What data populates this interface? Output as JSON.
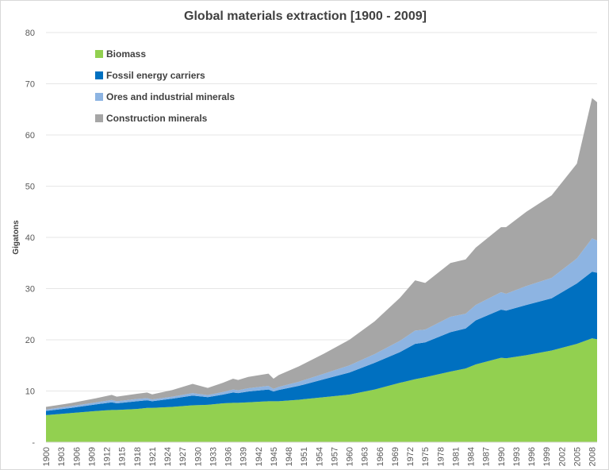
{
  "chart_data": {
    "type": "area",
    "stacked": true,
    "title": "Global materials extraction [1900 - 2009]",
    "xlabel": "",
    "ylabel": "Gigatons",
    "ylim": [
      0,
      80
    ],
    "yticks": [
      0,
      10,
      20,
      30,
      40,
      50,
      60,
      70,
      80
    ],
    "ytick_labels": [
      "-",
      "10",
      "20",
      "30",
      "40",
      "50",
      "60",
      "70",
      "80"
    ],
    "xlim": [
      1900,
      2009
    ],
    "xticks": [
      1900,
      1903,
      1906,
      1909,
      1912,
      1915,
      1918,
      1921,
      1924,
      1927,
      1930,
      1933,
      1936,
      1939,
      1942,
      1945,
      1948,
      1951,
      1954,
      1957,
      1960,
      1963,
      1966,
      1969,
      1972,
      1975,
      1978,
      1981,
      1984,
      1987,
      1990,
      1993,
      1996,
      1999,
      2002,
      2005,
      2008
    ],
    "grid": "horizontal",
    "legend_position": "top-left",
    "x": [
      1900,
      1905,
      1910,
      1913,
      1914,
      1918,
      1920,
      1921,
      1925,
      1929,
      1932,
      1935,
      1937,
      1938,
      1940,
      1944,
      1945,
      1946,
      1950,
      1955,
      1960,
      1965,
      1970,
      1973,
      1975,
      1980,
      1983,
      1985,
      1990,
      1991,
      1995,
      2000,
      2005,
      2008,
      2009
    ],
    "series": [
      {
        "name": "Biomass",
        "color": "#92d050",
        "values": [
          5.3,
          5.7,
          6.1,
          6.3,
          6.3,
          6.5,
          6.7,
          6.7,
          6.9,
          7.2,
          7.3,
          7.6,
          7.7,
          7.7,
          7.8,
          8.0,
          8.0,
          8.0,
          8.3,
          8.8,
          9.3,
          10.3,
          11.6,
          12.3,
          12.7,
          13.8,
          14.4,
          15.2,
          16.5,
          16.4,
          17.0,
          17.9,
          19.2,
          20.3,
          20.1
        ]
      },
      {
        "name": "Fossil energy carriers",
        "color": "#0070c0",
        "values": [
          0.8,
          1.0,
          1.3,
          1.5,
          1.3,
          1.5,
          1.5,
          1.3,
          1.6,
          1.9,
          1.5,
          1.7,
          2.0,
          1.9,
          2.1,
          2.3,
          1.9,
          2.2,
          2.7,
          3.5,
          4.3,
          5.2,
          6.0,
          6.9,
          6.8,
          7.7,
          7.8,
          8.6,
          9.4,
          9.3,
          9.8,
          10.2,
          11.8,
          13.0,
          13.0
        ]
      },
      {
        "name": "Ores and industrial minerals",
        "color": "#8db4e2",
        "values": [
          0.3,
          0.35,
          0.4,
          0.45,
          0.4,
          0.45,
          0.4,
          0.35,
          0.4,
          0.5,
          0.4,
          0.5,
          0.6,
          0.55,
          0.65,
          0.7,
          0.5,
          0.6,
          0.8,
          1.1,
          1.4,
          1.7,
          2.2,
          2.6,
          2.5,
          3.0,
          2.9,
          3.0,
          3.4,
          3.3,
          3.7,
          4.0,
          4.9,
          6.5,
          6.3
        ]
      },
      {
        "name": "Construction minerals",
        "color": "#a6a6a6",
        "values": [
          0.5,
          0.6,
          0.8,
          1.0,
          0.9,
          1.0,
          1.1,
          1.0,
          1.3,
          1.8,
          1.4,
          1.8,
          2.1,
          2.0,
          2.2,
          2.4,
          2.0,
          2.3,
          3.0,
          3.9,
          5.0,
          6.4,
          8.4,
          9.8,
          9.1,
          10.5,
          10.6,
          11.2,
          12.7,
          13.0,
          14.5,
          16.1,
          18.5,
          27.4,
          27.0
        ]
      }
    ]
  }
}
